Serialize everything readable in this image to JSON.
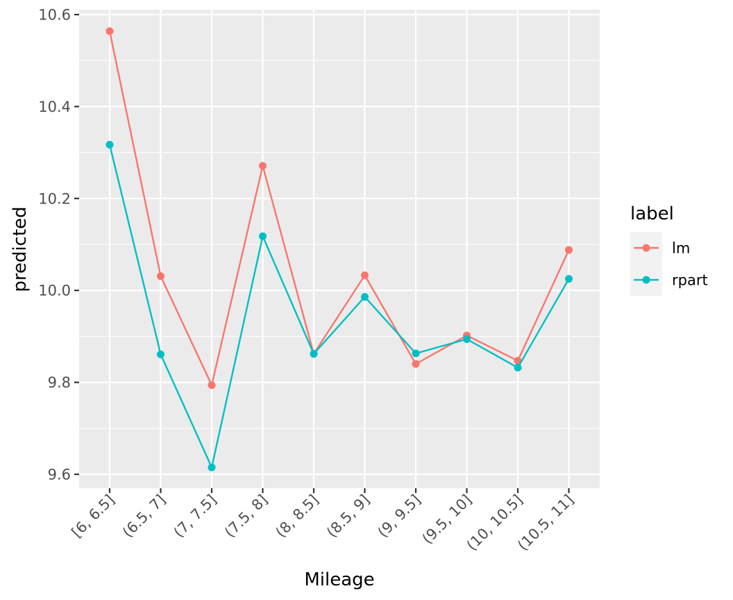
{
  "chart_data": {
    "type": "line",
    "xlabel": "Mileage",
    "ylabel": "predicted",
    "categories": [
      "[6, 6.5]",
      "(6.5, 7]",
      "(7, 7.5]",
      "(7.5, 8]",
      "(8, 8.5]",
      "(8.5, 9]",
      "(9, 9.5]",
      "(9.5, 10]",
      "(10, 10.5]",
      "(10.5, 11]"
    ],
    "ylim": [
      9.57,
      10.62
    ],
    "yticks": [
      9.6,
      9.8,
      10.0,
      10.2,
      10.4,
      10.6
    ],
    "ytick_labels": [
      "9.6",
      "9.8",
      "10.0",
      "10.2",
      "10.4",
      "10.6"
    ],
    "grid": true,
    "legend": {
      "title": "label",
      "placement": "right"
    },
    "series": [
      {
        "name": "lm",
        "color": "#F8766D",
        "values": [
          10.564,
          10.031,
          9.794,
          10.271,
          9.862,
          10.033,
          9.84,
          9.902,
          9.847,
          10.088
        ]
      },
      {
        "name": "rpart",
        "color": "#00BFC4",
        "values": [
          10.317,
          9.861,
          9.615,
          10.118,
          9.862,
          9.986,
          9.863,
          9.894,
          9.832,
          10.025
        ]
      }
    ],
    "panel_background": "#EBEBEB",
    "grid_color": "#FFFFFF"
  }
}
